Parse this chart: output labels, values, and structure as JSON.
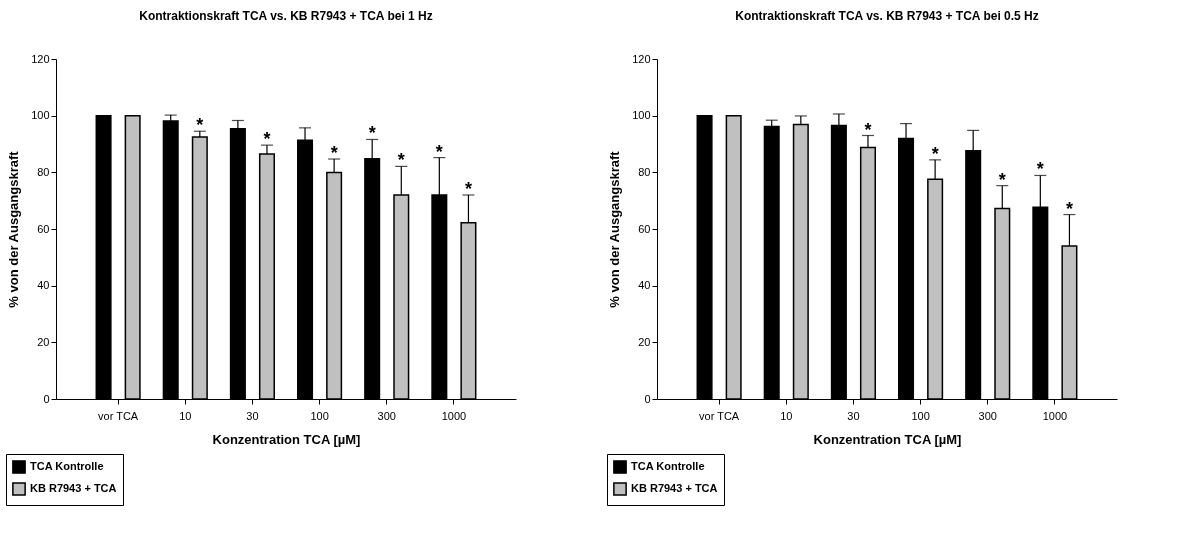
{
  "chart_data": [
    {
      "type": "bar",
      "title": "Kontraktionskraft TCA vs. KB R7943 + TCA bei 1 Hz",
      "xlabel": "Konzentration TCA [µM]",
      "ylabel": "% von der Ausgangskraft",
      "categories": [
        "vor TCA",
        "10",
        "30",
        "100",
        "300",
        "1000"
      ],
      "series": [
        {
          "name": "TCA Kontrolle",
          "color": "#000000",
          "values": [
            100,
            98.1,
            95.4,
            91.3,
            84.8,
            72.0
          ],
          "errors": [
            null,
            [
              98.1,
              100.2
            ],
            [
              95.4,
              98.3
            ],
            [
              91.3,
              95.7
            ],
            [
              84.8,
              91.6
            ],
            [
              72.0,
              85.2
            ]
          ],
          "value_labels": [
            null,
            null,
            null,
            null,
            "*",
            "*"
          ]
        },
        {
          "name": "KB R7943 + TCA",
          "color": "#c0c0c0",
          "values": [
            100,
            92.5,
            86.5,
            79.9,
            72.0,
            62.2
          ],
          "errors": [
            null,
            [
              92.5,
              94.5
            ],
            [
              86.5,
              89.6
            ],
            [
              79.9,
              84.7
            ],
            [
              72.0,
              82.1
            ],
            [
              62.2,
              72.0
            ]
          ],
          "value_labels": [
            null,
            "*",
            "*",
            "*",
            "*",
            "*"
          ]
        }
      ],
      "ylim": [
        0,
        120
      ],
      "yticks": [
        0,
        20,
        40,
        60,
        80,
        100,
        120
      ],
      "grid": false,
      "legend": "bottom left"
    },
    {
      "type": "bar",
      "title": "Kontraktionskraft TCA vs. KB R7943 + TCA bei 0.5 Hz",
      "xlabel": "Konzentration TCA [µM]",
      "ylabel": "% von der Ausgangskraft",
      "categories": [
        "vor TCA",
        "10",
        "30",
        "100",
        "300",
        "1000"
      ],
      "series": [
        {
          "name": "TCA Kontrolle",
          "color": "#000000",
          "values": [
            100,
            96.2,
            96.5,
            91.9,
            87.6,
            67.7
          ],
          "errors": [
            null,
            [
              96.2,
              98.4
            ],
            [
              96.5,
              100.6
            ],
            [
              91.9,
              97.2
            ],
            [
              87.6,
              94.8
            ],
            [
              67.7,
              78.9
            ]
          ],
          "value_labels": [
            null,
            null,
            null,
            null,
            null,
            "*"
          ]
        },
        {
          "name": "KB R7943 + TCA",
          "color": "#c0c0c0",
          "values": [
            100,
            96.9,
            88.8,
            77.6,
            67.2,
            54.0
          ],
          "errors": [
            null,
            [
              96.9,
              99.9
            ],
            [
              88.8,
              93.0
            ],
            [
              77.6,
              84.4
            ],
            [
              67.2,
              75.3
            ],
            [
              54.0,
              65.1
            ]
          ],
          "value_labels": [
            null,
            null,
            "*",
            "*",
            "*",
            "*"
          ]
        }
      ],
      "ylim": [
        0,
        120
      ],
      "yticks": [
        0,
        20,
        40,
        60,
        80,
        100,
        120
      ],
      "grid": false,
      "legend": "bottom left"
    }
  ]
}
